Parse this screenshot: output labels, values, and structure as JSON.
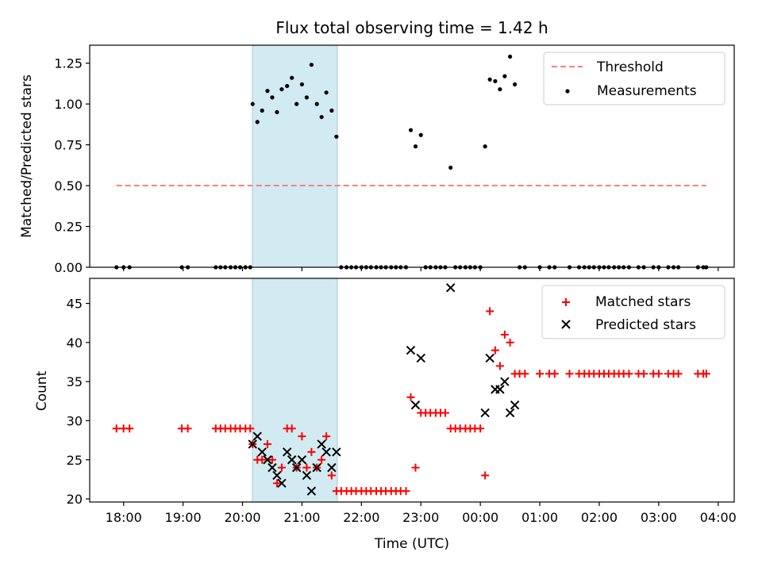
{
  "title": "Flux total observing time = 1.42 h",
  "colors": {
    "threshold": "#ff7f7f",
    "measurement": "#000000",
    "matched": "#ff0000",
    "predicted": "#000000",
    "shade": "#add8e6"
  },
  "chart_data": [
    {
      "type": "scatter",
      "ylabel": "Matched/Predicted stars",
      "x_unit": "hours since 18:00 UTC (axis continues past midnight)",
      "xlim": [
        -0.57,
        10.27
      ],
      "ylim": [
        0,
        1.36
      ],
      "yticks": [
        "0.00",
        "0.25",
        "0.50",
        "0.75",
        "1.00",
        "1.25"
      ],
      "shaded_interval": [
        "20:10",
        "21:36"
      ],
      "legend": {
        "position": "upper right",
        "entries": [
          "Threshold",
          "Measurements"
        ]
      },
      "series": [
        {
          "name": "Threshold",
          "kind": "dashed-line",
          "x": [
            -0.12,
            9.8
          ],
          "y": [
            0.5,
            0.5
          ]
        },
        {
          "name": "Measurements",
          "kind": "dot",
          "points": [
            [
              -0.12,
              0
            ],
            [
              0,
              0
            ],
            [
              0.1,
              0
            ],
            [
              0.98,
              0
            ],
            [
              1.08,
              0
            ],
            [
              1.55,
              0
            ],
            [
              1.63,
              0
            ],
            [
              1.71,
              0
            ],
            [
              1.8,
              0
            ],
            [
              1.88,
              0
            ],
            [
              1.96,
              0
            ],
            [
              2.05,
              0
            ],
            [
              2.13,
              0
            ],
            [
              2.17,
              1.0
            ],
            [
              2.25,
              0.89
            ],
            [
              2.33,
              0.96
            ],
            [
              2.42,
              1.08
            ],
            [
              2.5,
              1.04
            ],
            [
              2.58,
              0.95
            ],
            [
              2.66,
              1.09
            ],
            [
              2.75,
              1.11
            ],
            [
              2.83,
              1.16
            ],
            [
              2.91,
              1.0
            ],
            [
              3.0,
              1.12
            ],
            [
              3.08,
              1.04
            ],
            [
              3.16,
              1.24
            ],
            [
              3.25,
              1.0
            ],
            [
              3.33,
              0.92
            ],
            [
              3.41,
              1.07
            ],
            [
              3.5,
              0.96
            ],
            [
              3.58,
              0.8
            ],
            [
              3.66,
              0
            ],
            [
              3.75,
              0
            ],
            [
              3.83,
              0
            ],
            [
              3.91,
              0
            ],
            [
              4.0,
              0
            ],
            [
              4.08,
              0
            ],
            [
              4.16,
              0
            ],
            [
              4.25,
              0
            ],
            [
              4.33,
              0
            ],
            [
              4.41,
              0
            ],
            [
              4.5,
              0
            ],
            [
              4.58,
              0
            ],
            [
              4.66,
              0
            ],
            [
              4.75,
              0
            ],
            [
              4.83,
              0.84
            ],
            [
              4.91,
              0.74
            ],
            [
              5.0,
              0.81
            ],
            [
              5.08,
              0
            ],
            [
              5.16,
              0
            ],
            [
              5.25,
              0
            ],
            [
              5.33,
              0
            ],
            [
              5.41,
              0
            ],
            [
              5.5,
              0.61
            ],
            [
              5.58,
              0
            ],
            [
              5.66,
              0
            ],
            [
              5.75,
              0
            ],
            [
              5.83,
              0
            ],
            [
              5.91,
              0
            ],
            [
              6.0,
              0
            ],
            [
              6.08,
              0.74
            ],
            [
              6.16,
              1.15
            ],
            [
              6.25,
              1.14
            ],
            [
              6.33,
              1.09
            ],
            [
              6.41,
              1.17
            ],
            [
              6.5,
              1.29
            ],
            [
              6.58,
              1.12
            ],
            [
              6.66,
              0
            ],
            [
              6.75,
              0
            ],
            [
              7.0,
              0
            ],
            [
              7.16,
              0
            ],
            [
              7.25,
              0
            ],
            [
              7.5,
              0
            ],
            [
              7.66,
              0
            ],
            [
              7.75,
              0
            ],
            [
              7.83,
              0
            ],
            [
              7.91,
              0
            ],
            [
              8.0,
              0
            ],
            [
              8.08,
              0
            ],
            [
              8.16,
              0
            ],
            [
              8.25,
              0
            ],
            [
              8.33,
              0
            ],
            [
              8.41,
              0
            ],
            [
              8.5,
              0
            ],
            [
              8.66,
              0
            ],
            [
              8.75,
              0
            ],
            [
              8.91,
              0
            ],
            [
              9.0,
              0
            ],
            [
              9.16,
              0
            ],
            [
              9.25,
              0
            ],
            [
              9.33,
              0
            ],
            [
              9.66,
              0
            ],
            [
              9.75,
              0
            ],
            [
              9.8,
              0
            ]
          ]
        }
      ]
    },
    {
      "type": "scatter",
      "xlabel": "Time (UTC)",
      "ylabel": "Count",
      "x_unit": "hours since 18:00 UTC (axis continues past midnight)",
      "xlim": [
        -0.57,
        10.27
      ],
      "ylim": [
        19.6,
        48.2
      ],
      "yticks": [
        "20",
        "25",
        "30",
        "35",
        "40",
        "45"
      ],
      "xticks": [
        "18:00",
        "19:00",
        "20:00",
        "21:00",
        "22:00",
        "23:00",
        "00:00",
        "01:00",
        "02:00",
        "03:00",
        "04:00"
      ],
      "shaded_interval": [
        "20:10",
        "21:36"
      ],
      "legend": {
        "position": "upper right",
        "entries": [
          "Matched stars",
          "Predicted stars"
        ]
      },
      "series": [
        {
          "name": "Matched stars",
          "kind": "plus",
          "points": [
            [
              -0.12,
              29
            ],
            [
              0,
              29
            ],
            [
              0.1,
              29
            ],
            [
              0.98,
              29
            ],
            [
              1.08,
              29
            ],
            [
              1.55,
              29
            ],
            [
              1.63,
              29
            ],
            [
              1.71,
              29
            ],
            [
              1.8,
              29
            ],
            [
              1.88,
              29
            ],
            [
              1.96,
              29
            ],
            [
              2.05,
              29
            ],
            [
              2.13,
              29
            ],
            [
              2.17,
              27
            ],
            [
              2.25,
              25
            ],
            [
              2.33,
              25
            ],
            [
              2.42,
              27
            ],
            [
              2.5,
              25
            ],
            [
              2.58,
              22
            ],
            [
              2.66,
              24
            ],
            [
              2.75,
              29
            ],
            [
              2.83,
              29
            ],
            [
              2.91,
              24
            ],
            [
              3.0,
              28
            ],
            [
              3.08,
              24
            ],
            [
              3.16,
              26
            ],
            [
              3.25,
              24
            ],
            [
              3.33,
              25
            ],
            [
              3.41,
              28
            ],
            [
              3.5,
              23
            ],
            [
              3.58,
              21
            ],
            [
              3.66,
              21
            ],
            [
              3.75,
              21
            ],
            [
              3.83,
              21
            ],
            [
              3.91,
              21
            ],
            [
              4.0,
              21
            ],
            [
              4.08,
              21
            ],
            [
              4.16,
              21
            ],
            [
              4.25,
              21
            ],
            [
              4.33,
              21
            ],
            [
              4.41,
              21
            ],
            [
              4.5,
              21
            ],
            [
              4.58,
              21
            ],
            [
              4.66,
              21
            ],
            [
              4.75,
              21
            ],
            [
              4.83,
              33
            ],
            [
              4.91,
              24
            ],
            [
              5.0,
              31
            ],
            [
              5.08,
              31
            ],
            [
              5.16,
              31
            ],
            [
              5.25,
              31
            ],
            [
              5.33,
              31
            ],
            [
              5.41,
              31
            ],
            [
              5.5,
              29
            ],
            [
              5.58,
              29
            ],
            [
              5.66,
              29
            ],
            [
              5.75,
              29
            ],
            [
              5.83,
              29
            ],
            [
              5.91,
              29
            ],
            [
              6.0,
              29
            ],
            [
              6.08,
              23
            ],
            [
              6.16,
              44
            ],
            [
              6.25,
              39
            ],
            [
              6.33,
              37
            ],
            [
              6.41,
              41
            ],
            [
              6.5,
              40
            ],
            [
              6.58,
              36
            ],
            [
              6.66,
              36
            ],
            [
              6.75,
              36
            ],
            [
              7.0,
              36
            ],
            [
              7.16,
              36
            ],
            [
              7.25,
              36
            ],
            [
              7.5,
              36
            ],
            [
              7.66,
              36
            ],
            [
              7.75,
              36
            ],
            [
              7.83,
              36
            ],
            [
              7.91,
              36
            ],
            [
              8.0,
              36
            ],
            [
              8.08,
              36
            ],
            [
              8.16,
              36
            ],
            [
              8.25,
              36
            ],
            [
              8.33,
              36
            ],
            [
              8.41,
              36
            ],
            [
              8.5,
              36
            ],
            [
              8.66,
              36
            ],
            [
              8.75,
              36
            ],
            [
              8.91,
              36
            ],
            [
              9.0,
              36
            ],
            [
              9.16,
              36
            ],
            [
              9.25,
              36
            ],
            [
              9.33,
              36
            ],
            [
              9.66,
              36
            ],
            [
              9.75,
              36
            ],
            [
              9.8,
              36
            ]
          ]
        },
        {
          "name": "Predicted stars",
          "kind": "cross",
          "points": [
            [
              2.17,
              27
            ],
            [
              2.25,
              28
            ],
            [
              2.33,
              26
            ],
            [
              2.42,
              25
            ],
            [
              2.5,
              24
            ],
            [
              2.58,
              23
            ],
            [
              2.66,
              22
            ],
            [
              2.75,
              26
            ],
            [
              2.83,
              25
            ],
            [
              2.91,
              24
            ],
            [
              3.0,
              25
            ],
            [
              3.08,
              23
            ],
            [
              3.16,
              21
            ],
            [
              3.25,
              24
            ],
            [
              3.33,
              27
            ],
            [
              3.41,
              26
            ],
            [
              3.5,
              24
            ],
            [
              3.58,
              26
            ],
            [
              4.83,
              39
            ],
            [
              4.91,
              32
            ],
            [
              5.0,
              38
            ],
            [
              5.5,
              47
            ],
            [
              6.08,
              31
            ],
            [
              6.16,
              38
            ],
            [
              6.25,
              34
            ],
            [
              6.33,
              34
            ],
            [
              6.41,
              35
            ],
            [
              6.5,
              31
            ],
            [
              6.58,
              32
            ]
          ]
        }
      ]
    }
  ]
}
